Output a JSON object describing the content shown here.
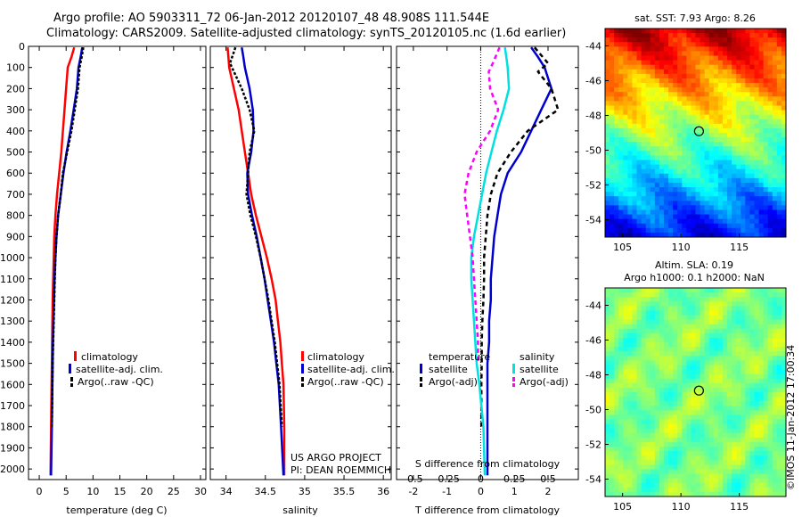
{
  "header": {
    "line1": "Argo profile: AO 5903311_72 06-Jan-2012 20120107_48 48.908S 111.544E",
    "line2": "Climatology: CARS2009. Satellite-adjusted climatology: synTS_20120105.nc (1.6d earlier)"
  },
  "colors": {
    "climatology": "#ff0000",
    "satellite": "#0000cc",
    "argo": "#000000",
    "sal_satellite": "#00e0e0",
    "sal_argo": "#ff00ff"
  },
  "credits": {
    "line1": "US ARGO PROJECT",
    "line2": "PI: DEAN ROEMMICH"
  },
  "stamp": "©IMOS 11-Jan-2012 17:00:34",
  "chart_data": [
    {
      "type": "line",
      "name": "temperature-profile",
      "xlabel": "temperature (deg C)",
      "xlim": [
        -2,
        31
      ],
      "ylim": [
        2050,
        0
      ],
      "xticks": [
        0,
        5,
        10,
        15,
        20,
        25,
        30
      ],
      "yticks": [
        0,
        100,
        200,
        300,
        400,
        500,
        600,
        700,
        800,
        900,
        1000,
        1100,
        1200,
        1300,
        1400,
        1500,
        1600,
        1700,
        1800,
        1900,
        2000
      ],
      "legend": [
        "climatology",
        "satellite-adj. clim.",
        "Argo(..raw -QC)"
      ],
      "series": [
        {
          "name": "climatology",
          "color": "#ff0000",
          "dash": "",
          "x": [
            6.5,
            6.0,
            5.3,
            5.0,
            4.7,
            4.4,
            4.1,
            3.7,
            3.3,
            3.0,
            2.8,
            2.7,
            2.6,
            2.5,
            2.45,
            2.4,
            2.35,
            2.3,
            2.2,
            2.1
          ],
          "y": [
            5,
            50,
            100,
            200,
            300,
            400,
            500,
            600,
            700,
            800,
            900,
            1000,
            1100,
            1200,
            1300,
            1400,
            1500,
            1600,
            1800,
            2030
          ]
        },
        {
          "name": "satellite-adj. clim.",
          "color": "#0000cc",
          "dash": "",
          "x": [
            8.0,
            7.7,
            7.3,
            7.0,
            6.4,
            5.8,
            5.1,
            4.5,
            4.0,
            3.5,
            3.2,
            3.0,
            2.85,
            2.75,
            2.65,
            2.55,
            2.5,
            2.45,
            2.35,
            2.2
          ],
          "y": [
            5,
            50,
            100,
            200,
            300,
            400,
            500,
            600,
            700,
            800,
            900,
            1000,
            1100,
            1200,
            1300,
            1400,
            1500,
            1600,
            1800,
            2030
          ]
        },
        {
          "name": "Argo(..raw -QC)",
          "color": "#000000",
          "dash": "3,2",
          "x": [
            8.2,
            7.9,
            7.5,
            7.2,
            6.6,
            6.0,
            5.2,
            4.4,
            4.0,
            3.5,
            3.2,
            3.0,
            2.9,
            2.8,
            2.7,
            2.6,
            2.5,
            2.45,
            2.35
          ],
          "y": [
            5,
            50,
            100,
            200,
            300,
            400,
            500,
            600,
            700,
            800,
            900,
            1000,
            1100,
            1200,
            1300,
            1400,
            1500,
            1600,
            1800
          ]
        }
      ]
    },
    {
      "type": "line",
      "name": "salinity-profile",
      "xlabel": "salinity",
      "xlim": [
        33.8,
        36.1
      ],
      "ylim": [
        2050,
        0
      ],
      "xticks": [
        34,
        34.5,
        35,
        35.5,
        36
      ],
      "legend": [
        "climatology",
        "satellite-adj. clim.",
        "Argo(..raw -QC)"
      ],
      "series": [
        {
          "name": "climatology",
          "color": "#ff0000",
          "dash": "",
          "x": [
            34.02,
            34.03,
            34.04,
            34.1,
            34.16,
            34.2,
            34.24,
            34.28,
            34.32,
            34.38,
            34.45,
            34.52,
            34.58,
            34.63,
            34.66,
            34.69,
            34.71,
            34.73,
            34.74,
            34.74
          ],
          "y": [
            5,
            50,
            100,
            200,
            300,
            400,
            500,
            600,
            700,
            800,
            900,
            1000,
            1100,
            1200,
            1300,
            1400,
            1500,
            1600,
            1800,
            2030
          ]
        },
        {
          "name": "satellite-adj. clim.",
          "color": "#0000cc",
          "dash": "",
          "x": [
            34.2,
            34.22,
            34.24,
            34.3,
            34.34,
            34.35,
            34.32,
            34.27,
            34.28,
            34.33,
            34.39,
            34.44,
            34.49,
            34.53,
            34.57,
            34.61,
            34.64,
            34.67,
            34.7,
            34.73
          ],
          "y": [
            5,
            50,
            100,
            200,
            300,
            400,
            500,
            600,
            700,
            800,
            900,
            1000,
            1100,
            1200,
            1300,
            1400,
            1500,
            1600,
            1800,
            2030
          ]
        },
        {
          "name": "Argo(..raw -QC)",
          "color": "#000000",
          "dash": "3,2",
          "x": [
            34.12,
            34.05,
            34.1,
            34.2,
            34.3,
            34.36,
            34.3,
            34.28,
            34.26,
            34.31,
            34.38,
            34.44,
            34.49,
            34.54,
            34.58,
            34.62,
            34.65,
            34.68,
            34.71
          ],
          "y": [
            5,
            80,
            120,
            200,
            300,
            400,
            500,
            600,
            700,
            800,
            900,
            1000,
            1100,
            1200,
            1300,
            1400,
            1500,
            1600,
            1800
          ]
        }
      ]
    },
    {
      "type": "line",
      "name": "difference-profile",
      "xlabel": "T difference from climatology",
      "x2label": "S difference from climatology",
      "xlim": [
        -2.5,
        2.9
      ],
      "x2lim": [
        -0.625,
        0.725
      ],
      "ylim": [
        2050,
        0
      ],
      "xticks": [
        -2,
        -1,
        0,
        1,
        2
      ],
      "x2ticks": [
        -0.5,
        -0.25,
        0,
        0.25,
        0.5
      ],
      "legend_titles": [
        "temperature",
        "salinity"
      ],
      "legend": [
        "satellite",
        "Argo(-adj)",
        "satellite",
        "Argo(-adj)"
      ],
      "series": [
        {
          "name": "temperature satellite",
          "color": "#0000cc",
          "dash": "",
          "x": [
            1.5,
            1.7,
            1.9,
            2.1,
            1.8,
            1.5,
            1.2,
            0.8,
            0.6,
            0.5,
            0.4,
            0.35,
            0.3,
            0.3,
            0.25,
            0.25,
            0.2,
            0.2,
            0.2,
            0.2
          ],
          "y": [
            5,
            50,
            100,
            200,
            300,
            400,
            500,
            600,
            700,
            800,
            900,
            1000,
            1100,
            1200,
            1300,
            1400,
            1500,
            1600,
            1800,
            2030
          ]
        },
        {
          "name": "temperature Argo",
          "color": "#000000",
          "dash": "5,4",
          "x": [
            1.6,
            2.0,
            1.7,
            2.1,
            2.3,
            1.4,
            0.9,
            0.5,
            0.3,
            0.2,
            0.15,
            0.1,
            0.1,
            0.08,
            0.05,
            0.03,
            0.03,
            0.02,
            0.02
          ],
          "y": [
            5,
            80,
            120,
            200,
            300,
            400,
            500,
            600,
            700,
            800,
            900,
            1000,
            1100,
            1200,
            1300,
            1400,
            1500,
            1600,
            1800
          ]
        },
        {
          "name": "salinity satellite",
          "color": "#00e0e0",
          "dash": "",
          "axis": "x2",
          "x": [
            0.18,
            0.19,
            0.2,
            0.21,
            0.17,
            0.12,
            0.08,
            0.04,
            0.01,
            -0.02,
            -0.05,
            -0.07,
            -0.07,
            -0.06,
            -0.05,
            -0.04,
            -0.03,
            -0.01,
            0.02,
            0.03
          ],
          "y": [
            5,
            50,
            100,
            200,
            300,
            400,
            500,
            600,
            700,
            800,
            900,
            1000,
            1100,
            1200,
            1300,
            1400,
            1500,
            1600,
            1800,
            2030
          ]
        },
        {
          "name": "salinity Argo",
          "color": "#ff00ff",
          "dash": "5,4",
          "axis": "x2",
          "x": [
            0.14,
            0.09,
            0.06,
            0.07,
            0.13,
            0.07,
            -0.03,
            -0.09,
            -0.12,
            -0.1,
            -0.08,
            -0.06,
            -0.05,
            -0.04,
            -0.03,
            -0.02,
            -0.02
          ],
          "y": [
            5,
            80,
            120,
            200,
            300,
            400,
            500,
            600,
            700,
            800,
            900,
            1000,
            1100,
            1200,
            1300,
            1400,
            1500
          ]
        }
      ]
    },
    {
      "type": "heatmap",
      "name": "sst-map",
      "title": "sat. SST: 7.93 Argo: 8.26",
      "xlim": [
        103.5,
        119
      ],
      "ylim": [
        -55,
        -43
      ],
      "xticks": [
        105,
        110,
        115
      ],
      "yticks": [
        -44,
        -46,
        -48,
        -50,
        -52,
        -54
      ],
      "marker": [
        111.544,
        -48.908
      ]
    },
    {
      "type": "heatmap",
      "name": "sla-map",
      "title": "Altim. SLA: 0.19",
      "subtitle": "Argo h1000: 0.1 h2000: NaN",
      "xlim": [
        103.5,
        119
      ],
      "ylim": [
        -55,
        -43
      ],
      "xticks": [
        105,
        110,
        115
      ],
      "yticks": [
        -44,
        -46,
        -48,
        -50,
        -52,
        -54
      ],
      "marker": [
        111.544,
        -48.908
      ]
    }
  ]
}
